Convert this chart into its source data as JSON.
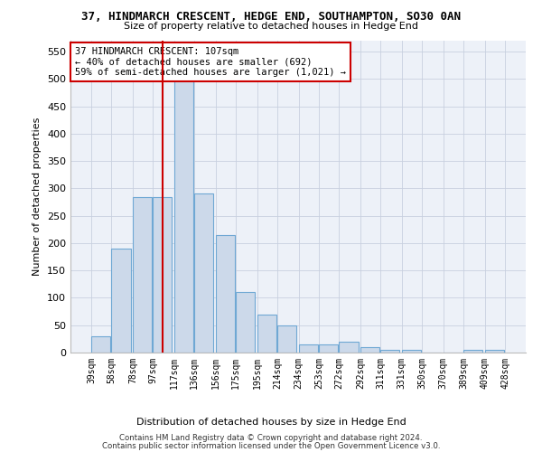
{
  "title": "37, HINDMARCH CRESCENT, HEDGE END, SOUTHAMPTON, SO30 0AN",
  "subtitle": "Size of property relative to detached houses in Hedge End",
  "xlabel": "Distribution of detached houses by size in Hedge End",
  "ylabel": "Number of detached properties",
  "bar_color": "#ccd9ea",
  "bar_edge_color": "#6fa8d4",
  "marker_color": "#cc0000",
  "marker_value": 107,
  "annotation_text": "37 HINDMARCH CRESCENT: 107sqm\n← 40% of detached houses are smaller (692)\n59% of semi-detached houses are larger (1,021) →",
  "ylim": [
    0,
    570
  ],
  "yticks": [
    0,
    50,
    100,
    150,
    200,
    250,
    300,
    350,
    400,
    450,
    500,
    550
  ],
  "bins": [
    39,
    58,
    78,
    97,
    117,
    136,
    156,
    175,
    195,
    214,
    234,
    253,
    272,
    292,
    311,
    331,
    350,
    370,
    389,
    409,
    428
  ],
  "counts": [
    30,
    190,
    285,
    285,
    510,
    290,
    215,
    110,
    70,
    50,
    15,
    15,
    20,
    10,
    5,
    5,
    0,
    0,
    5,
    5
  ],
  "footer_line1": "Contains HM Land Registry data © Crown copyright and database right 2024.",
  "footer_line2": "Contains public sector information licensed under the Open Government Licence v3.0.",
  "background_color": "#edf1f8",
  "grid_color": "#c8d0df"
}
